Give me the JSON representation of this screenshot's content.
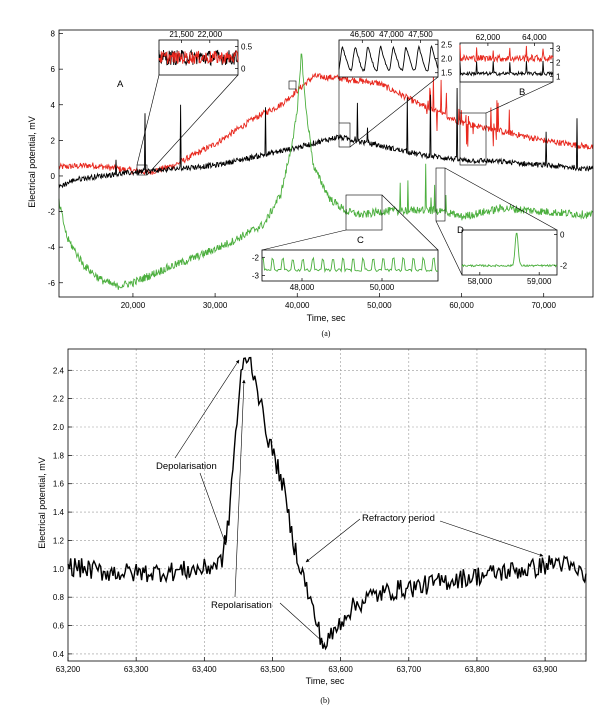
{
  "chart_data": [
    {
      "id": "a",
      "type": "line",
      "caption": "(a)",
      "xlabel": "Time, sec",
      "ylabel": "Electrical potential, mV",
      "xlim": [
        11000,
        76000
      ],
      "ylim": [
        -6.8,
        8.2
      ],
      "xticks": [
        20000,
        30000,
        40000,
        50000,
        60000,
        70000
      ],
      "xtick_labels": [
        "20,000",
        "30,000",
        "40,000",
        "50,000",
        "60,000",
        "70,000"
      ],
      "yticks": [
        -6,
        -4,
        -2,
        0,
        2,
        4,
        6,
        8
      ],
      "ytick_labels": [
        "-6",
        "-4",
        "-2",
        "0",
        "2",
        "4",
        "6",
        "8"
      ],
      "series": [
        {
          "color": "#e8281e",
          "x": [
            11000,
            15000,
            20000,
            22000,
            25000,
            30000,
            35000,
            38000,
            40000,
            42000,
            45000,
            50000,
            55000,
            60000,
            65000,
            70000,
            76000
          ],
          "y": [
            0.5,
            0.6,
            0.3,
            0.2,
            0.6,
            1.8,
            3.3,
            4.0,
            4.8,
            5.6,
            5.5,
            5.2,
            4.0,
            3.0,
            2.5,
            2.0,
            1.6
          ]
        },
        {
          "color": "#000000",
          "x": [
            11000,
            13000,
            16000,
            20000,
            25000,
            30000,
            35000,
            40000,
            45000,
            50000,
            55000,
            60000,
            65000,
            70000,
            76000
          ],
          "y": [
            -0.6,
            -0.2,
            0.0,
            0.2,
            0.4,
            0.6,
            1.1,
            1.6,
            2.2,
            1.7,
            1.2,
            0.9,
            0.8,
            0.6,
            0.4
          ]
        },
        {
          "color": "#4caf3e",
          "x": [
            11000,
            12000,
            14000,
            16000,
            18000,
            20000,
            24000,
            28000,
            32000,
            36000,
            38000,
            39000,
            40000,
            40500,
            41000,
            42000,
            44000,
            46000,
            48000,
            50000,
            55000,
            58000,
            60000,
            65000,
            70000,
            76000
          ],
          "y": [
            -1.5,
            -3.5,
            -5.0,
            -5.8,
            -6.2,
            -6.0,
            -5.2,
            -4.5,
            -3.7,
            -2.7,
            -1.0,
            1.0,
            3.5,
            7.0,
            4.0,
            0.5,
            -1.3,
            -2.0,
            -2.2,
            -2.0,
            -1.9,
            -2.0,
            -2.3,
            -1.8,
            -2.0,
            -2.2
          ]
        }
      ],
      "markers": [
        "A",
        "B",
        "C",
        "D"
      ],
      "insets": [
        {
          "id": "A",
          "xticks": [
            21500,
            22000
          ],
          "xtick_labels": [
            "21,500",
            "22,000"
          ],
          "yticks": [
            0,
            0.5
          ],
          "ytick_labels": [
            "0",
            "0.5"
          ],
          "xlim": [
            21100,
            22500
          ],
          "ylim": [
            -0.15,
            0.65
          ]
        },
        {
          "id": "top-mid",
          "xticks": [
            46500,
            47000,
            47500
          ],
          "xtick_labels": [
            "46,500",
            "47,000",
            "47,500"
          ],
          "yticks": [
            1.5,
            2.0,
            2.5
          ],
          "ytick_labels": [
            "1.5",
            "2.0",
            "2.5"
          ],
          "xlim": [
            46100,
            47800
          ],
          "ylim": [
            1.35,
            2.65
          ]
        },
        {
          "id": "B",
          "xticks": [
            62000,
            64000
          ],
          "xtick_labels": [
            "62,000",
            "64,000"
          ],
          "yticks": [
            1,
            2,
            3
          ],
          "ytick_labels": [
            "1",
            "2",
            "3"
          ],
          "xlim": [
            60800,
            64800
          ],
          "ylim": [
            0.6,
            3.4
          ]
        },
        {
          "id": "C",
          "xticks": [
            48000,
            50000
          ],
          "xtick_labels": [
            "48,000",
            "50,000"
          ],
          "yticks": [
            -3,
            -2
          ],
          "ytick_labels": [
            "-3",
            "-2"
          ],
          "xlim": [
            47000,
            51400
          ],
          "ylim": [
            -3.3,
            -1.6
          ]
        },
        {
          "id": "D",
          "xticks": [
            58000,
            59000
          ],
          "xtick_labels": [
            "58,000",
            "59,000"
          ],
          "yticks": [
            -2,
            0
          ],
          "ytick_labels": [
            "-2",
            "0"
          ],
          "xlim": [
            57700,
            59300
          ],
          "ylim": [
            -2.6,
            0.3
          ]
        }
      ]
    },
    {
      "id": "b",
      "type": "line",
      "caption": "(b)",
      "xlabel": "Time, sec",
      "ylabel": "Electrical potential, mV",
      "xlim": [
        63200,
        63960
      ],
      "ylim": [
        0.35,
        2.55
      ],
      "grid": true,
      "xticks": [
        63200,
        63300,
        63400,
        63500,
        63600,
        63700,
        63800,
        63900
      ],
      "xtick_labels": [
        "63,200",
        "63,300",
        "63,400",
        "63,500",
        "63,600",
        "63,700",
        "63,800",
        "63,900"
      ],
      "yticks": [
        0.4,
        0.6,
        0.8,
        1.0,
        1.2,
        1.4,
        1.6,
        1.8,
        2.0,
        2.2,
        2.4
      ],
      "ytick_labels": [
        "0.4",
        "0.6",
        "0.8",
        "1.0",
        "1.2",
        "1.4",
        "1.6",
        "1.8",
        "2.0",
        "2.2",
        "2.4"
      ],
      "series": [
        {
          "color": "#000000",
          "x": [
            63200,
            63250,
            63300,
            63350,
            63400,
            63425,
            63435,
            63445,
            63455,
            63462,
            63468,
            63475,
            63485,
            63495,
            63505,
            63515,
            63530,
            63545,
            63560,
            63575,
            63590,
            63610,
            63640,
            63680,
            63720,
            63760,
            63800,
            63840,
            63880,
            63920,
            63960
          ],
          "y": [
            1.02,
            0.98,
            0.97,
            0.98,
            1.0,
            1.05,
            1.3,
            1.9,
            2.4,
            2.5,
            2.45,
            2.35,
            2.1,
            1.9,
            1.75,
            1.6,
            1.2,
            0.95,
            0.7,
            0.45,
            0.55,
            0.7,
            0.8,
            0.85,
            0.88,
            0.92,
            0.95,
            0.98,
            1.0,
            1.05,
            0.95
          ]
        }
      ],
      "annotations": [
        "Depolarisation",
        "Repolarisation",
        "Refractory period"
      ]
    }
  ]
}
